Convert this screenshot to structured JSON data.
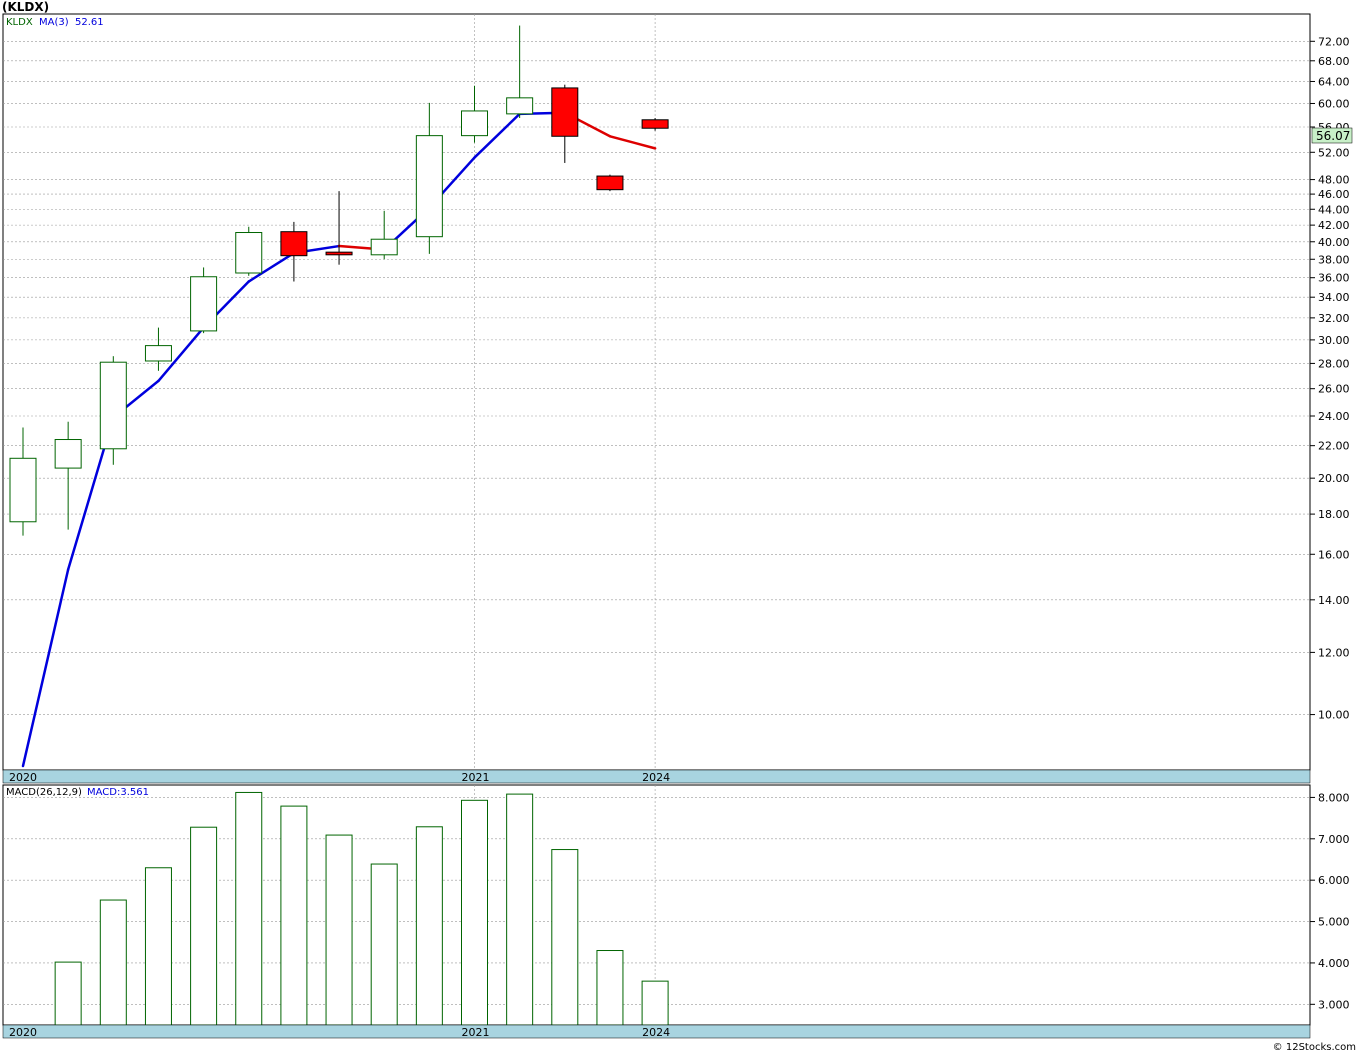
{
  "title": "(KLDX)",
  "copyright": "© 12Stocks.com",
  "colors": {
    "up_candle_stroke": "#006400",
    "down_candle_fill": "#ff0000",
    "ma_rising": "#0000dd",
    "ma_falling": "#dd0000",
    "macd_bar": "#006400",
    "axis_band": "#a8d4e0",
    "last_price_box": "#c8f0c8",
    "grid": "#999999"
  },
  "chart_data": [
    {
      "type": "candlestick",
      "legend": {
        "symbol": "KLDX",
        "ma_label": "MA(3)",
        "ma_value": "52.61"
      },
      "scale": "log",
      "ylim": [
        8.5,
        78
      ],
      "yticks": [
        "72.00",
        "68.00",
        "64.00",
        "60.00",
        "56.00",
        "52.00",
        "48.00",
        "46.00",
        "44.00",
        "42.00",
        "40.00",
        "38.00",
        "36.00",
        "34.00",
        "32.00",
        "30.00",
        "28.00",
        "26.00",
        "24.00",
        "22.00",
        "20.00",
        "18.00",
        "16.00",
        "14.00",
        "12.00",
        "10.00"
      ],
      "x_labels": [
        {
          "label": "2020",
          "index": 0
        },
        {
          "label": "2021",
          "index": 10
        },
        {
          "label": "2024",
          "index": 14
        }
      ],
      "last_price": "56.07",
      "candles": [
        {
          "o": 17.6,
          "h": 23.2,
          "l": 16.9,
          "c": 21.2
        },
        {
          "o": 20.6,
          "h": 23.6,
          "l": 17.2,
          "c": 22.4
        },
        {
          "o": 21.8,
          "h": 28.6,
          "l": 20.8,
          "c": 28.1
        },
        {
          "o": 28.2,
          "h": 31.1,
          "l": 27.4,
          "c": 29.5
        },
        {
          "o": 30.8,
          "h": 37.1,
          "l": 30.6,
          "c": 36.1
        },
        {
          "o": 36.5,
          "h": 41.8,
          "l": 36.2,
          "c": 41.1
        },
        {
          "o": 41.2,
          "h": 42.4,
          "l": 35.6,
          "c": 38.4
        },
        {
          "o": 38.8,
          "h": 46.4,
          "l": 37.4,
          "c": 38.5
        },
        {
          "o": 38.5,
          "h": 43.8,
          "l": 38.0,
          "c": 40.3
        },
        {
          "o": 40.6,
          "h": 60.1,
          "l": 38.6,
          "c": 54.6
        },
        {
          "o": 54.6,
          "h": 63.2,
          "l": 53.5,
          "c": 58.7
        },
        {
          "o": 58.2,
          "h": 75.4,
          "l": 57.5,
          "c": 61.0
        },
        {
          "o": 62.8,
          "h": 63.4,
          "l": 50.4,
          "c": 54.5
        },
        {
          "o": 48.5,
          "h": 48.7,
          "l": 46.4,
          "c": 46.6
        },
        {
          "o": 57.2,
          "h": 57.5,
          "l": 55.4,
          "c": 55.8
        }
      ],
      "ma3": [
        8.6,
        15.3,
        23.9,
        26.6,
        31.1,
        35.6,
        38.7,
        39.5,
        39.1,
        44.2,
        51.2,
        58.2,
        58.4,
        54.5,
        52.6
      ]
    },
    {
      "type": "bar",
      "legend": {
        "label": "MACD(26,12,9)",
        "value_label": "MACD:3.561"
      },
      "ylim": [
        2.5,
        8.3
      ],
      "yticks": [
        "8.000",
        "7.000",
        "6.000",
        "5.000",
        "4.000",
        "3.000"
      ],
      "x_labels": [
        {
          "label": "2020",
          "index": 0
        },
        {
          "label": "2021",
          "index": 10
        },
        {
          "label": "2024",
          "index": 14
        }
      ],
      "values": [
        null,
        4.02,
        5.52,
        6.3,
        7.28,
        8.12,
        7.79,
        7.09,
        6.39,
        7.29,
        7.93,
        8.08,
        6.74,
        4.3,
        3.56
      ]
    }
  ]
}
